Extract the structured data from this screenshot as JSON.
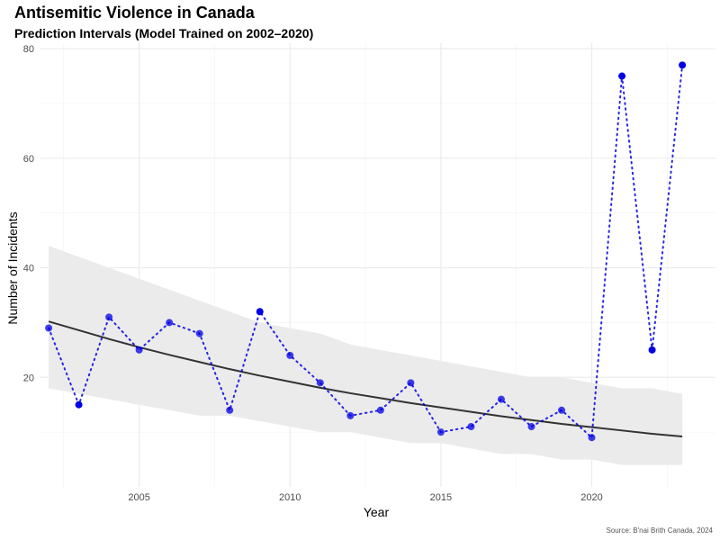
{
  "chart_data": {
    "type": "line",
    "title": "Antisemitic Violence in Canada",
    "subtitle": "Prediction Intervals (Model Trained on 2002–2020)",
    "xlabel": "Year",
    "ylabel": "Number of Incidents",
    "caption": "Source: B'nai Brith Canada, 2024",
    "xlim": [
      2001.7,
      2024.1
    ],
    "ylim": [
      0,
      81
    ],
    "x_ticks": [
      2005,
      2010,
      2015,
      2020
    ],
    "y_ticks": [
      20,
      40,
      60,
      80
    ],
    "grid": true,
    "legend": "none",
    "series": [
      {
        "kind": "observed",
        "style": "dotted line with points",
        "color": "#0000e6",
        "x": [
          2002,
          2003,
          2004,
          2005,
          2006,
          2007,
          2008,
          2009,
          2010,
          2011,
          2012,
          2013,
          2014,
          2015,
          2016,
          2017,
          2018,
          2019,
          2020,
          2021,
          2022,
          2023
        ],
        "y": [
          29,
          15,
          31,
          25,
          30,
          28,
          14,
          32,
          24,
          19,
          13,
          14,
          19,
          10,
          11,
          16,
          11,
          14,
          9,
          75,
          25,
          77
        ]
      },
      {
        "kind": "fitted",
        "style": "solid line",
        "color": "#333333",
        "x": [
          2002,
          2003,
          2004,
          2005,
          2006,
          2007,
          2008,
          2009,
          2010,
          2011,
          2012,
          2013,
          2014,
          2015,
          2016,
          2017,
          2018,
          2019,
          2020,
          2021,
          2022,
          2023
        ],
        "y": [
          30.2,
          28.6,
          27.0,
          25.5,
          24.1,
          22.8,
          21.5,
          20.3,
          19.2,
          18.1,
          17.1,
          16.2,
          15.3,
          14.5,
          13.7,
          12.9,
          12.2,
          11.5,
          10.9,
          10.3,
          9.7,
          9.2
        ]
      }
    ],
    "prediction_interval": {
      "color": "#ebebeb",
      "x": [
        2002,
        2003,
        2004,
        2005,
        2006,
        2007,
        2008,
        2009,
        2010,
        2011,
        2012,
        2013,
        2014,
        2015,
        2016,
        2017,
        2018,
        2019,
        2020,
        2021,
        2022,
        2023
      ],
      "lower": [
        18,
        17,
        16,
        15,
        14,
        13,
        13,
        12,
        11,
        10,
        10,
        9,
        8,
        8,
        7,
        6,
        6,
        5,
        5,
        4,
        4,
        4
      ],
      "upper": [
        44,
        42,
        40,
        38,
        36,
        34,
        32,
        30,
        29,
        28,
        26,
        25,
        24,
        23,
        22,
        21,
        20,
        20,
        19,
        18,
        18,
        17
      ]
    }
  }
}
